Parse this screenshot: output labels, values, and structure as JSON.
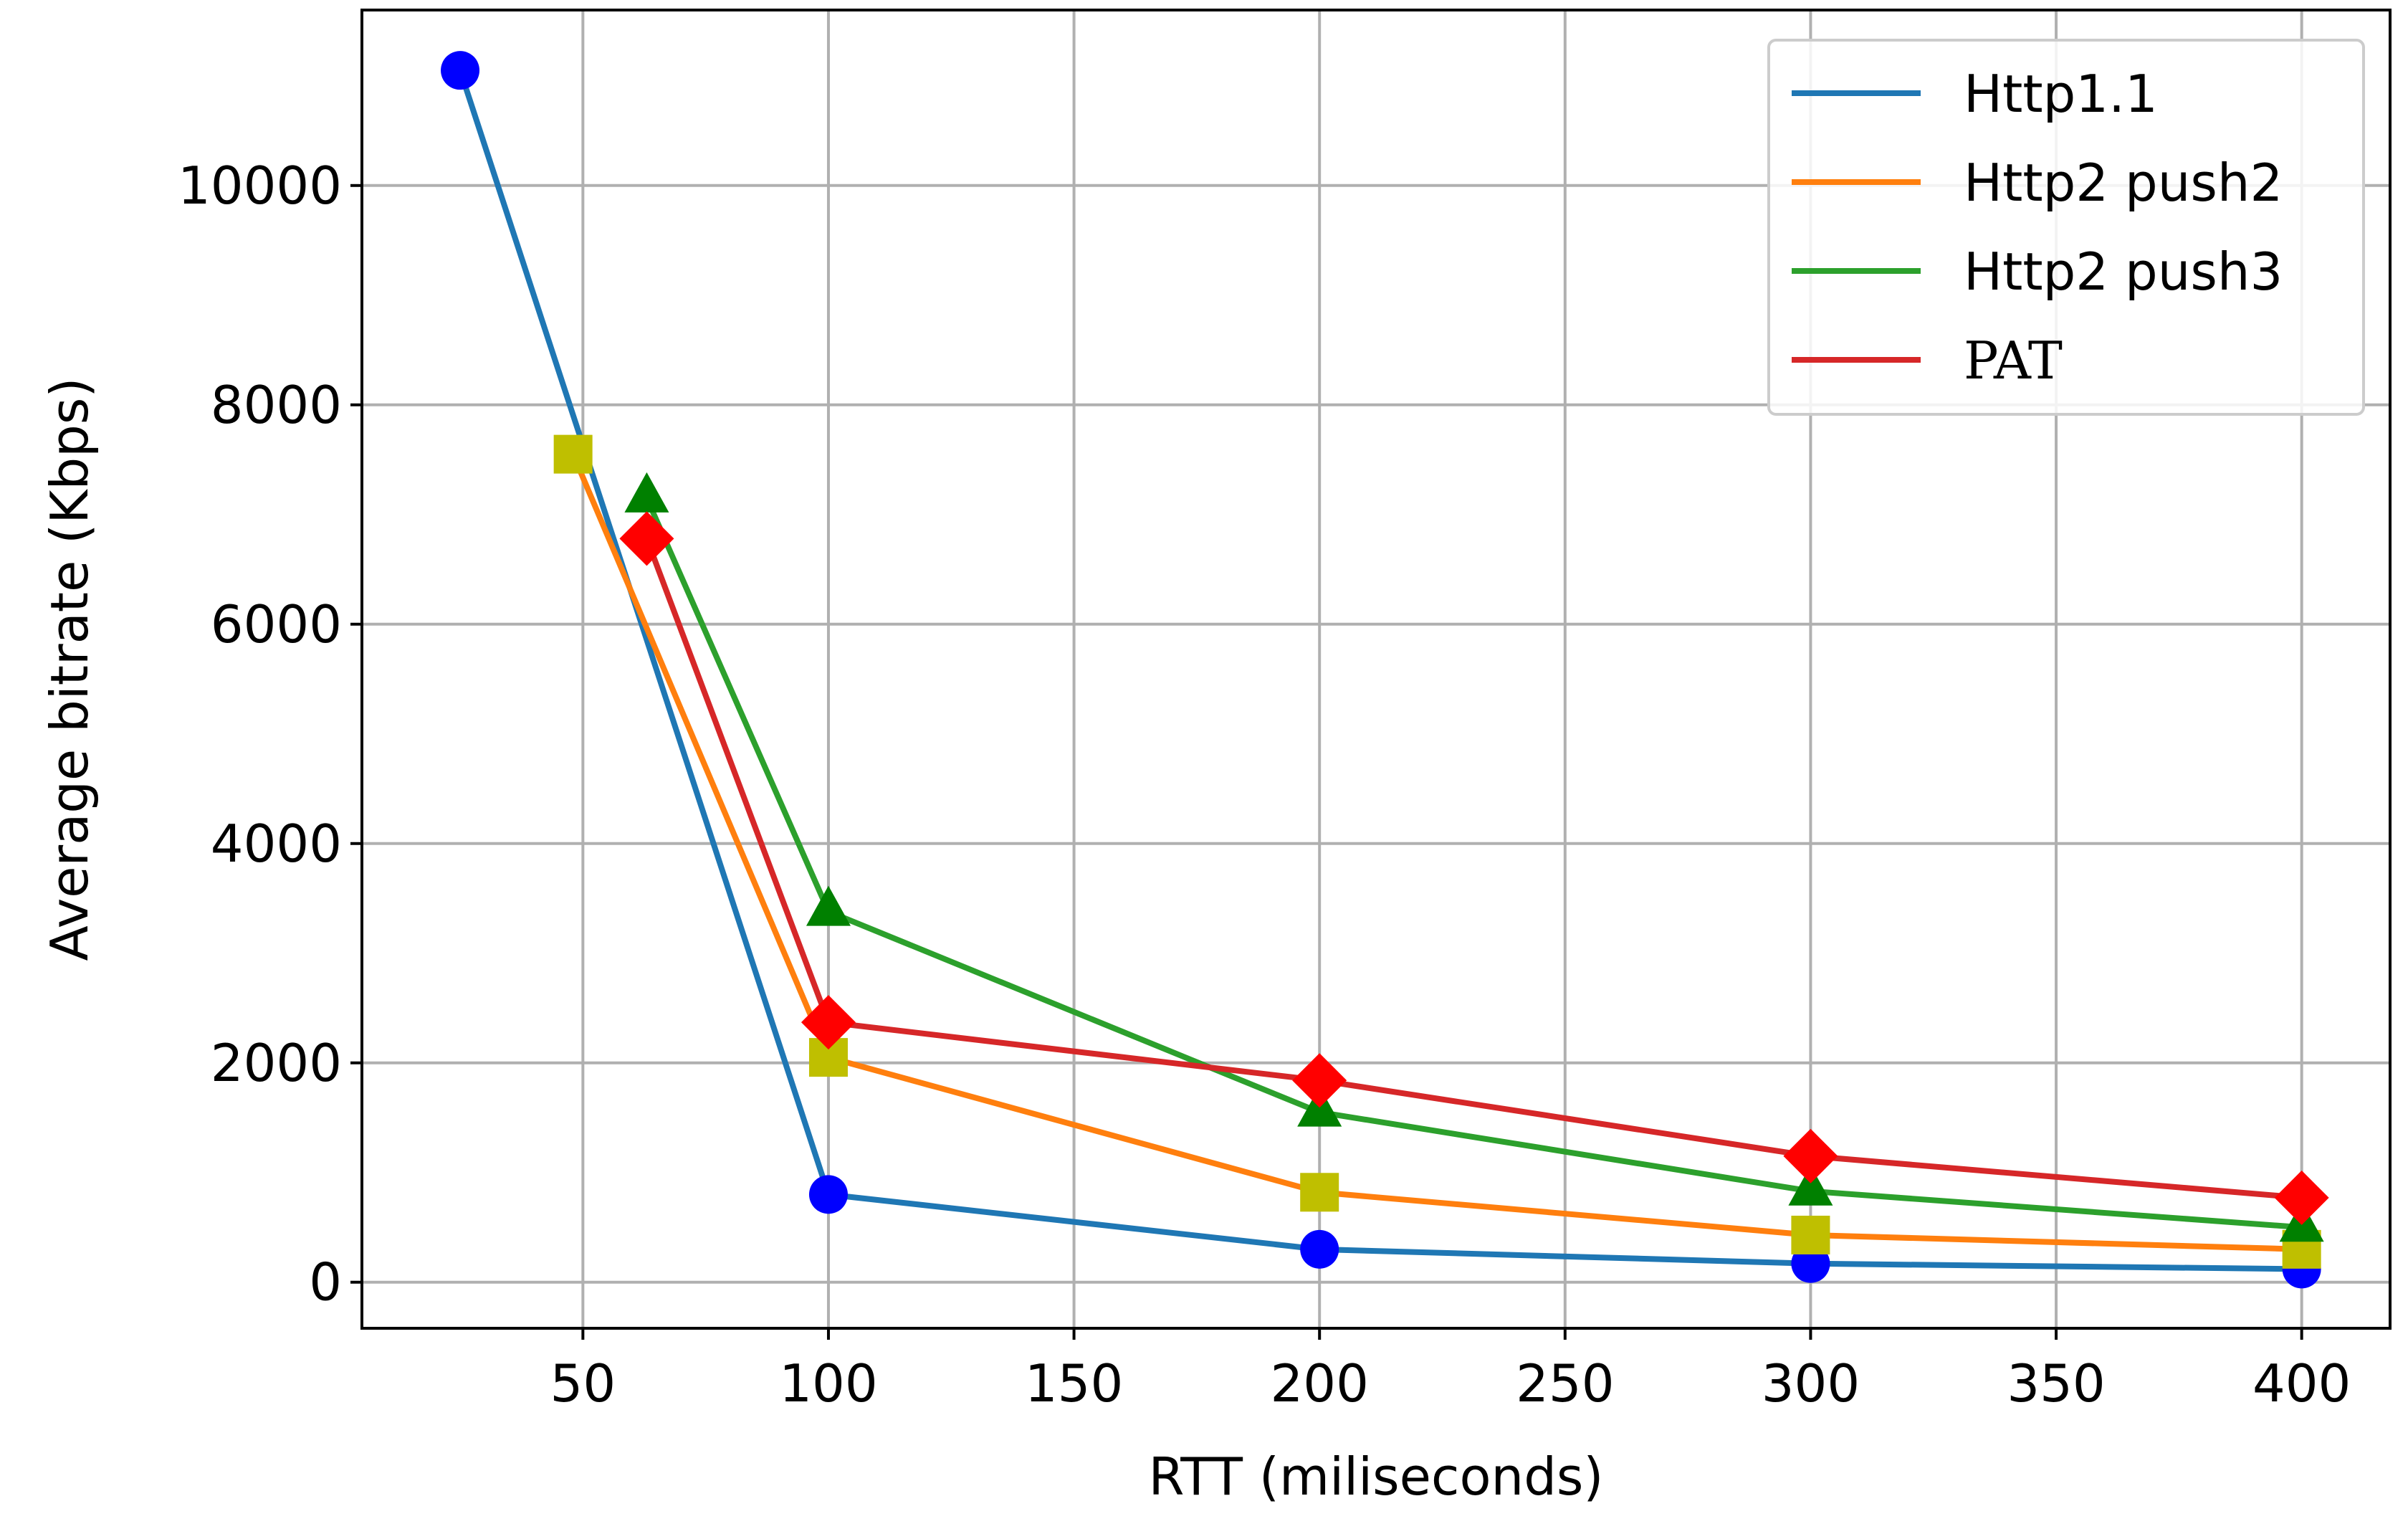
{
  "chart_data": {
    "type": "line",
    "title": "",
    "xlabel": "RTT (miliseconds)",
    "ylabel": "Average bitrate (Kbps)",
    "xlim": [
      5,
      418
    ],
    "ylim": [
      -420,
      11600
    ],
    "xticks": [
      50,
      100,
      150,
      200,
      250,
      300,
      350,
      400
    ],
    "yticks": [
      0,
      2000,
      4000,
      6000,
      8000,
      10000
    ],
    "grid": true,
    "legend_position": "top-right",
    "series": [
      {
        "name": "Http1.1",
        "line_color": "#1f77b4",
        "marker": "circle",
        "marker_color": "#0000ff",
        "x": [
          25,
          100,
          200,
          300,
          400
        ],
        "y": [
          11050,
          800,
          300,
          170,
          120
        ]
      },
      {
        "name": "Http2 push2",
        "line_color": "#ff7f0e",
        "marker": "square",
        "marker_color": "#bfbf00",
        "x": [
          48,
          100,
          200,
          300,
          400
        ],
        "y": [
          7550,
          2050,
          820,
          430,
          300
        ]
      },
      {
        "name": "Http2 push3",
        "line_color": "#2ca02c",
        "marker": "triangle",
        "marker_color": "#008000",
        "x": [
          63,
          100,
          200,
          300,
          400
        ],
        "y": [
          7150,
          3380,
          1550,
          830,
          500
        ]
      },
      {
        "name": "PAT",
        "line_color": "#d62728",
        "marker": "diamond",
        "marker_color": "#ff0000",
        "x": [
          63,
          100,
          200,
          300,
          400
        ],
        "y": [
          6780,
          2370,
          1840,
          1150,
          770
        ]
      }
    ]
  }
}
